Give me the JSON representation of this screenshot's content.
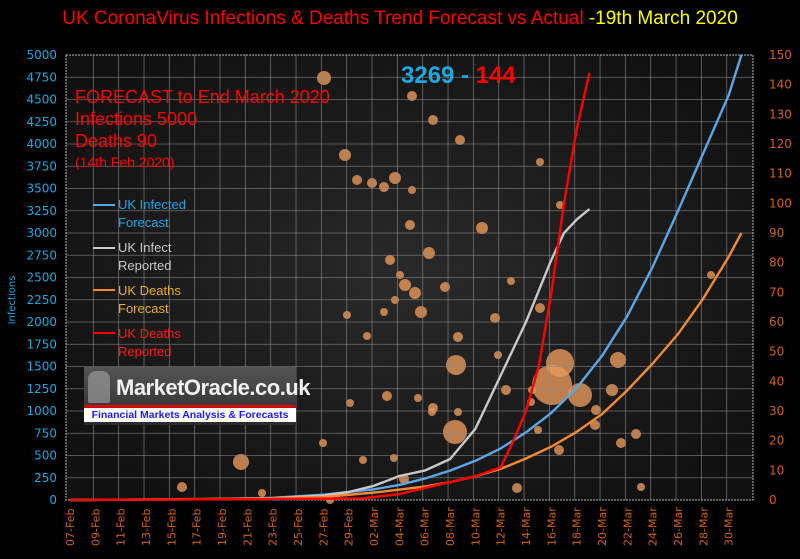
{
  "title": {
    "main": "UK CoronaVirus Infections & Deaths Trend Forecast vs Actual",
    "date": " -19th March 2020"
  },
  "annotations": {
    "forecast_lines": [
      "FORECAST to End March 2020",
      "Infections  5000",
      "Deaths 90"
    ],
    "forecast_date": "(14th Feb 2020)",
    "current_infections": "3269",
    "separator": " - ",
    "current_deaths": "144"
  },
  "logo": {
    "brand": "MarketOracle.co.uk",
    "tagline": "Financial Markets Analysis & Forecasts"
  },
  "colors": {
    "infected_forecast": "#5aa6e6",
    "infect_reported": "#c8c8c8",
    "deaths_forecast": "#f28a36",
    "deaths_reported": "#ff0000",
    "left_axis": "#1ea7e1",
    "right_axis": "#d0641a"
  },
  "chart_data": {
    "type": "line",
    "title": "UK CoronaVirus Infections & Deaths Trend Forecast vs Actual -19th March 2020",
    "xlabel": "",
    "ylabel": "Infections",
    "y2label": "",
    "ylim": [
      0,
      5000
    ],
    "y2lim": [
      0,
      150
    ],
    "yticks": [
      "0",
      "250",
      "500",
      "750",
      "1000",
      "1250",
      "1500",
      "1750",
      "2000",
      "2250",
      "2500",
      "2750",
      "3000",
      "3250",
      "3500",
      "3750",
      "4000",
      "4250",
      "4500",
      "4750",
      "5000"
    ],
    "y2ticks": [
      "0",
      "10",
      "20",
      "30",
      "40",
      "50",
      "60",
      "70",
      "80",
      "90",
      "100",
      "110",
      "120",
      "130",
      "140",
      "150"
    ],
    "xticks": [
      "07-Feb",
      "09-Feb",
      "11-Feb",
      "13-Feb",
      "15-Feb",
      "17-Feb",
      "19-Feb",
      "21-Feb",
      "23-Feb",
      "25-Feb",
      "27-Feb",
      "29-Feb",
      "02-Mar",
      "04-Mar",
      "06-Mar",
      "08-Mar",
      "10-Mar",
      "12-Mar",
      "14-Mar",
      "16-Mar",
      "18-Mar",
      "20-Mar",
      "22-Mar",
      "24-Mar",
      "26-Mar",
      "28-Mar",
      "30-Mar"
    ],
    "x_day_range": [
      0,
      53
    ],
    "grid": true,
    "legend_position": "left",
    "series": [
      {
        "name": "UK Infected Forecast",
        "axis": "left",
        "color": "#5aa6e6",
        "x": [
          0,
          10,
          16,
          20,
          24,
          26,
          28,
          30,
          32,
          34,
          36,
          38,
          40,
          42,
          44,
          46,
          48,
          50,
          52,
          53
        ],
        "values": [
          0,
          8,
          25,
          60,
          120,
          170,
          240,
          330,
          440,
          580,
          760,
          980,
          1260,
          1620,
          2070,
          2620,
          3250,
          3900,
          4550,
          5000
        ]
      },
      {
        "name": "UK Infect Reported",
        "axis": "left",
        "color": "#c8c8c8",
        "x": [
          0,
          10,
          16,
          20,
          22,
          24,
          26,
          28,
          30,
          32,
          34,
          36,
          38,
          39,
          40,
          41
        ],
        "values": [
          0,
          8,
          20,
          50,
          90,
          160,
          270,
          330,
          460,
          800,
          1400,
          2000,
          2700,
          3000,
          3150,
          3269
        ]
      },
      {
        "name": "UK Deaths Forecast",
        "axis": "right",
        "color": "#f28a36",
        "x": [
          0,
          16,
          20,
          24,
          28,
          30,
          32,
          34,
          36,
          38,
          40,
          42,
          44,
          46,
          48,
          50,
          52,
          53
        ],
        "values": [
          0,
          0.5,
          1,
          2.5,
          4.5,
          6,
          8,
          10.5,
          14,
          18,
          23,
          29,
          37,
          46,
          56,
          68,
          82,
          90
        ]
      },
      {
        "name": "UK Deaths Reported",
        "axis": "right",
        "color": "#ff0000",
        "x": [
          0,
          23,
          26,
          28,
          30,
          32,
          34,
          35,
          36,
          37,
          38,
          39,
          40,
          41
        ],
        "values": [
          0,
          0.5,
          2,
          4,
          6,
          8,
          11,
          20,
          30,
          45,
          70,
          100,
          125,
          144
        ]
      }
    ]
  }
}
